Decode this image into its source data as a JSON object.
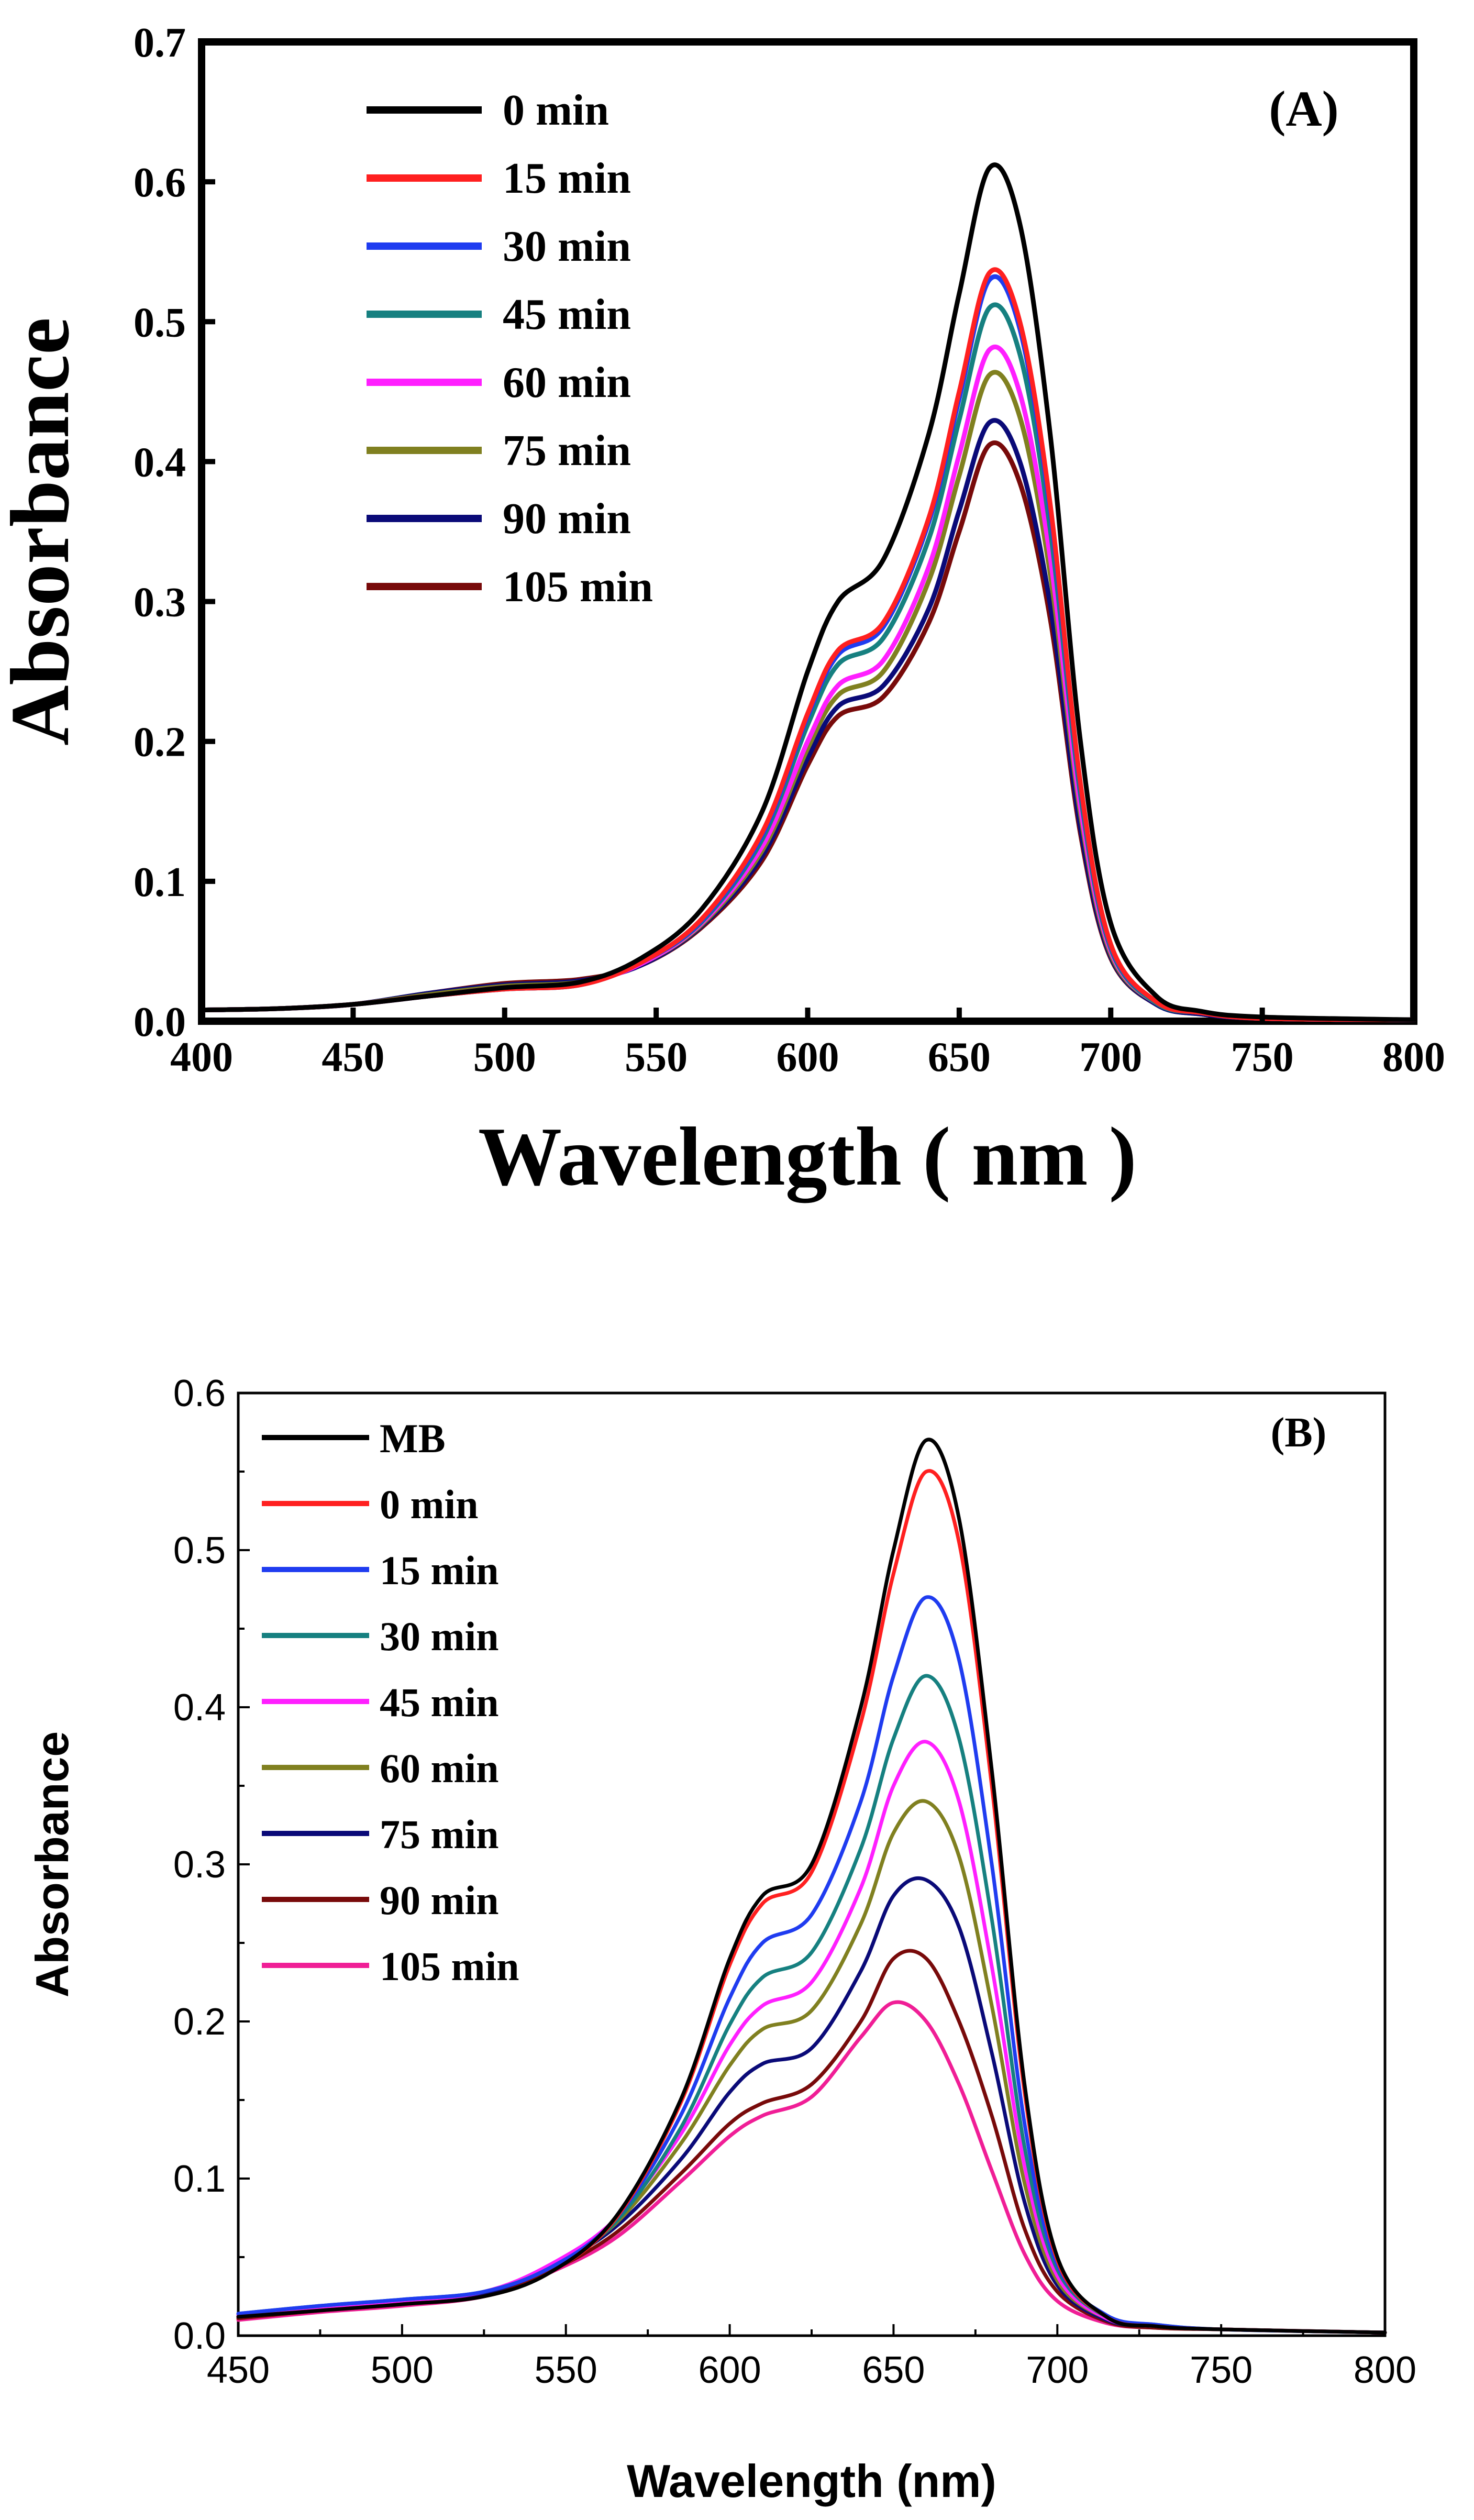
{
  "chart_data": [
    {
      "type": "line",
      "panel_label": "(A)",
      "title": "",
      "xlabel": "Wavelength ( nm )",
      "ylabel": "Absorbance",
      "xlim": [
        400,
        800
      ],
      "ylim": [
        0,
        0.7
      ],
      "xticks": [
        "400",
        "450",
        "500",
        "550",
        "600",
        "650",
        "700",
        "750",
        "800"
      ],
      "yticks": [
        "0.0",
        "0.1",
        "0.2",
        "0.3",
        "0.4",
        "0.5",
        "0.6",
        "0.7"
      ],
      "legend_position": "top-left",
      "grid": false,
      "x": [
        400,
        425,
        450,
        475,
        500,
        525,
        545,
        565,
        585,
        600,
        610,
        625,
        640,
        650,
        660,
        670,
        680,
        690,
        700,
        715,
        730,
        750,
        800
      ],
      "series": [
        {
          "name": "0 min",
          "color": "#000000",
          "values": [
            0.008,
            0.009,
            0.012,
            0.018,
            0.024,
            0.028,
            0.045,
            0.08,
            0.15,
            0.25,
            0.3,
            0.33,
            0.42,
            0.52,
            0.61,
            0.57,
            0.42,
            0.2,
            0.07,
            0.018,
            0.007,
            0.003,
            0.001
          ]
        },
        {
          "name": "15 min",
          "color": "#ff2020",
          "values": [
            0.008,
            0.009,
            0.012,
            0.018,
            0.023,
            0.026,
            0.042,
            0.073,
            0.135,
            0.22,
            0.265,
            0.285,
            0.36,
            0.45,
            0.535,
            0.5,
            0.37,
            0.17,
            0.055,
            0.014,
            0.006,
            0.002,
            0.001
          ]
        },
        {
          "name": "30 min",
          "color": "#1f3cf0",
          "values": [
            0.008,
            0.009,
            0.012,
            0.018,
            0.023,
            0.026,
            0.042,
            0.072,
            0.133,
            0.218,
            0.262,
            0.282,
            0.357,
            0.445,
            0.53,
            0.495,
            0.365,
            0.168,
            0.054,
            0.014,
            0.006,
            0.002,
            0.001
          ]
        },
        {
          "name": "45 min",
          "color": "#168080",
          "values": [
            0.008,
            0.009,
            0.012,
            0.018,
            0.023,
            0.026,
            0.042,
            0.071,
            0.13,
            0.212,
            0.255,
            0.274,
            0.345,
            0.43,
            0.51,
            0.477,
            0.352,
            0.162,
            0.052,
            0.013,
            0.006,
            0.002,
            0.001
          ]
        },
        {
          "name": "60 min",
          "color": "#ff1fff",
          "values": [
            0.008,
            0.009,
            0.012,
            0.018,
            0.024,
            0.027,
            0.041,
            0.07,
            0.125,
            0.2,
            0.24,
            0.258,
            0.325,
            0.405,
            0.48,
            0.449,
            0.332,
            0.153,
            0.05,
            0.013,
            0.006,
            0.002,
            0.001
          ]
        },
        {
          "name": "75 min",
          "color": "#808020",
          "values": [
            0.008,
            0.009,
            0.012,
            0.019,
            0.025,
            0.028,
            0.041,
            0.069,
            0.122,
            0.195,
            0.233,
            0.25,
            0.315,
            0.39,
            0.462,
            0.432,
            0.32,
            0.148,
            0.048,
            0.013,
            0.006,
            0.002,
            0.001
          ]
        },
        {
          "name": "90 min",
          "color": "#0a0a78",
          "values": [
            0.008,
            0.009,
            0.012,
            0.02,
            0.026,
            0.029,
            0.04,
            0.068,
            0.118,
            0.188,
            0.225,
            0.24,
            0.295,
            0.365,
            0.428,
            0.4,
            0.298,
            0.138,
            0.046,
            0.012,
            0.005,
            0.002,
            0.001
          ]
        },
        {
          "name": "105 min",
          "color": "#780a0a",
          "values": [
            0.008,
            0.009,
            0.012,
            0.02,
            0.027,
            0.03,
            0.04,
            0.067,
            0.115,
            0.183,
            0.218,
            0.232,
            0.285,
            0.35,
            0.412,
            0.385,
            0.288,
            0.134,
            0.045,
            0.012,
            0.005,
            0.002,
            0.001
          ]
        }
      ]
    },
    {
      "type": "line",
      "panel_label": "(B)",
      "title": "",
      "xlabel": "Wavelength (nm)",
      "ylabel": "Absorbance",
      "xlim": [
        450,
        800
      ],
      "ylim": [
        0,
        0.6
      ],
      "xticks": [
        "450",
        "500",
        "550",
        "600",
        "650",
        "700",
        "750",
        "800"
      ],
      "yticks": [
        "0.0",
        "0.1",
        "0.2",
        "0.3",
        "0.4",
        "0.5",
        "0.6"
      ],
      "legend_position": "top-left",
      "grid": false,
      "x": [
        450,
        475,
        500,
        525,
        545,
        565,
        585,
        600,
        610,
        625,
        640,
        650,
        660,
        670,
        680,
        690,
        700,
        715,
        730,
        750,
        800
      ],
      "series": [
        {
          "name": "MB",
          "color": "#000000",
          "values": [
            0.012,
            0.016,
            0.02,
            0.025,
            0.04,
            0.075,
            0.15,
            0.24,
            0.28,
            0.3,
            0.4,
            0.5,
            0.57,
            0.52,
            0.36,
            0.16,
            0.05,
            0.012,
            0.006,
            0.004,
            0.002
          ]
        },
        {
          "name": "0 min",
          "color": "#ff2020",
          "values": [
            0.012,
            0.016,
            0.02,
            0.025,
            0.04,
            0.074,
            0.148,
            0.236,
            0.275,
            0.295,
            0.39,
            0.485,
            0.55,
            0.505,
            0.35,
            0.155,
            0.048,
            0.012,
            0.006,
            0.004,
            0.002
          ]
        },
        {
          "name": "15 min",
          "color": "#1f3cf0",
          "values": [
            0.014,
            0.019,
            0.023,
            0.028,
            0.043,
            0.074,
            0.14,
            0.215,
            0.25,
            0.268,
            0.34,
            0.42,
            0.47,
            0.43,
            0.3,
            0.135,
            0.045,
            0.013,
            0.007,
            0.004,
            0.002
          ]
        },
        {
          "name": "30 min",
          "color": "#168080",
          "values": [
            0.014,
            0.019,
            0.023,
            0.028,
            0.043,
            0.072,
            0.132,
            0.198,
            0.228,
            0.244,
            0.31,
            0.38,
            0.42,
            0.38,
            0.265,
            0.12,
            0.042,
            0.012,
            0.007,
            0.004,
            0.002
          ]
        },
        {
          "name": "45 min",
          "color": "#ff1fff",
          "values": [
            0.013,
            0.018,
            0.022,
            0.028,
            0.045,
            0.074,
            0.128,
            0.185,
            0.21,
            0.225,
            0.285,
            0.35,
            0.378,
            0.34,
            0.235,
            0.108,
            0.038,
            0.011,
            0.006,
            0.004,
            0.002
          ]
        },
        {
          "name": "60 min",
          "color": "#808020",
          "values": [
            0.013,
            0.018,
            0.022,
            0.028,
            0.044,
            0.071,
            0.122,
            0.172,
            0.195,
            0.207,
            0.262,
            0.32,
            0.34,
            0.305,
            0.21,
            0.097,
            0.035,
            0.011,
            0.006,
            0.004,
            0.002
          ]
        },
        {
          "name": "75 min",
          "color": "#0a0a78",
          "values": [
            0.012,
            0.017,
            0.021,
            0.027,
            0.043,
            0.069,
            0.112,
            0.155,
            0.173,
            0.183,
            0.232,
            0.28,
            0.29,
            0.26,
            0.18,
            0.085,
            0.032,
            0.01,
            0.006,
            0.004,
            0.002
          ]
        },
        {
          "name": "90 min",
          "color": "#780a0a",
          "values": [
            0.011,
            0.016,
            0.02,
            0.026,
            0.041,
            0.065,
            0.103,
            0.135,
            0.148,
            0.16,
            0.2,
            0.24,
            0.24,
            0.2,
            0.14,
            0.068,
            0.028,
            0.009,
            0.005,
            0.004,
            0.002
          ]
        },
        {
          "name": "105 min",
          "color": "#f01e96",
          "values": [
            0.01,
            0.015,
            0.019,
            0.025,
            0.04,
            0.062,
            0.098,
            0.127,
            0.14,
            0.152,
            0.19,
            0.212,
            0.2,
            0.16,
            0.105,
            0.052,
            0.022,
            0.008,
            0.005,
            0.004,
            0.002
          ]
        }
      ]
    }
  ]
}
